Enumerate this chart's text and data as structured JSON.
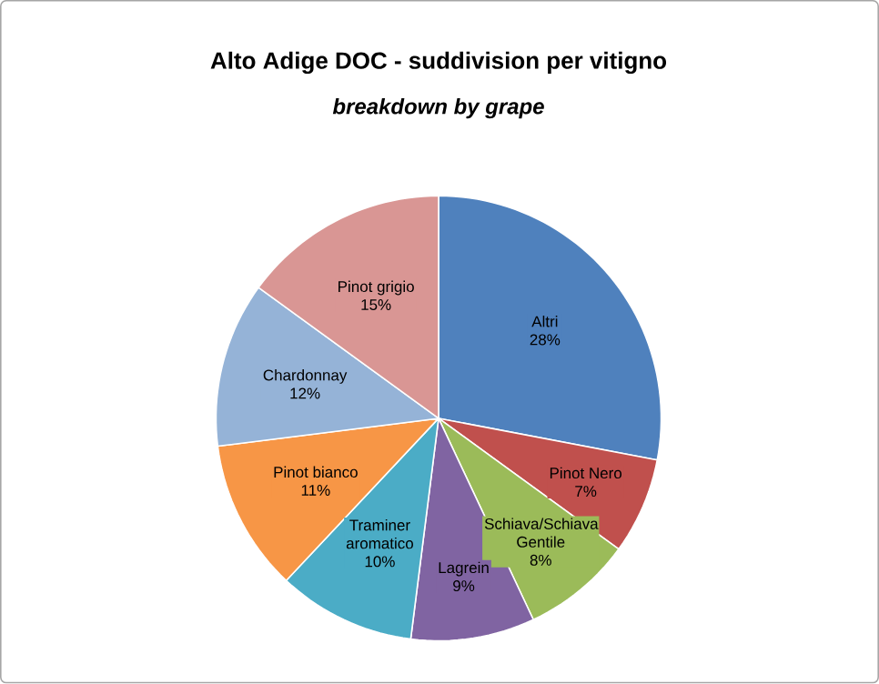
{
  "chart_data": {
    "type": "pie",
    "title": "Alto Adige DOC - suddivision per vitigno",
    "subtitle": "breakdown by grape",
    "categories": [
      "Altri",
      "Pinot Nero",
      "Schiava/Schiava Gentile",
      "Lagrein",
      "Traminer aromatico",
      "Pinot bianco",
      "Chardonnay",
      "Pinot grigio"
    ],
    "values": [
      28,
      7,
      8,
      9,
      10,
      11,
      12,
      15
    ],
    "value_labels": [
      "28%",
      "7%",
      "8%",
      "9%",
      "10%",
      "11%",
      "12%",
      "15%"
    ],
    "colors": [
      "#4f81bd",
      "#c0504d",
      "#9bbb59",
      "#8064a2",
      "#4bacc6",
      "#f79646",
      "#95b3d7",
      "#d99694"
    ]
  }
}
